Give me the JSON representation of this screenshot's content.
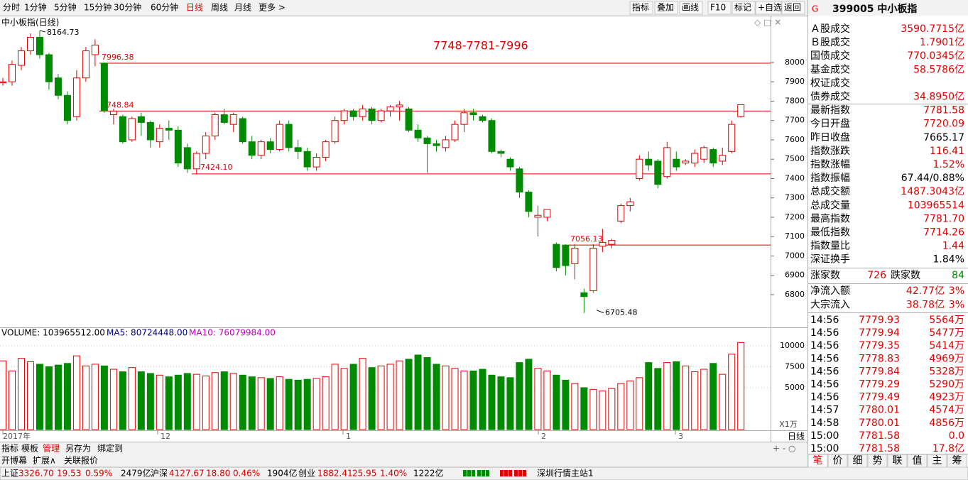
{
  "toolbar": {
    "periods": [
      "分时",
      "1分钟",
      "5分钟",
      "15分钟",
      "30分钟",
      "60分钟",
      "日线",
      "周线",
      "月线",
      "更多 >"
    ],
    "tools": [
      "指标",
      "叠加",
      "画线",
      "F10",
      "标记",
      "+自选",
      "返回"
    ]
  },
  "price_chart": {
    "title": "中小板指(日线)",
    "annotation": "7748-7781-7996",
    "ylim": [
      6653,
      8176
    ],
    "yticks": [
      6800,
      6900,
      7000,
      7100,
      7200,
      7300,
      7400,
      7500,
      7600,
      7700,
      7800,
      7900,
      8000
    ],
    "levels": [
      7996.38,
      7748.84,
      {
        "value": 7424.1,
        "label": "7424.10"
      },
      7056.13
    ],
    "high": 8164.73,
    "low": 6705.48,
    "period_label": "日线",
    "x_labels": [
      "2017年",
      "12",
      "1",
      "2",
      "3"
    ],
    "candles": [
      [
        7895,
        7920,
        7880,
        7900
      ],
      [
        7900,
        8010,
        7880,
        7990
      ],
      [
        7985,
        8080,
        7960,
        8060
      ],
      [
        8060,
        8150,
        8040,
        8130
      ],
      [
        8130,
        8164.73,
        8020,
        8040
      ],
      [
        8040,
        8050,
        7860,
        7900
      ],
      [
        7920,
        7940,
        7810,
        7830
      ],
      [
        7830,
        7850,
        7680,
        7700
      ],
      [
        7720,
        7960,
        7700,
        7920
      ],
      [
        7920,
        8080,
        7900,
        8060
      ],
      [
        8040,
        8120,
        7980,
        8090
      ],
      [
        7996.38,
        8000,
        7740,
        7750
      ],
      [
        7730,
        7760,
        7680,
        7748.84
      ],
      [
        7720,
        7730,
        7580,
        7590
      ],
      [
        7600,
        7720,
        7590,
        7710
      ],
      [
        7720,
        7740,
        7620,
        7690
      ],
      [
        7690,
        7700,
        7560,
        7600
      ],
      [
        7590,
        7680,
        7560,
        7660
      ],
      [
        7660,
        7700,
        7600,
        7650
      ],
      [
        7650,
        7670,
        7460,
        7480
      ],
      [
        7560,
        7580,
        7430,
        7450
      ],
      [
        7450,
        7540,
        7424.1,
        7530
      ],
      [
        7530,
        7640,
        7500,
        7620
      ],
      [
        7620,
        7740,
        7600,
        7730
      ],
      [
        7730,
        7760,
        7680,
        7690
      ],
      [
        7680,
        7740,
        7640,
        7730
      ],
      [
        7710,
        7720,
        7580,
        7590
      ],
      [
        7590,
        7620,
        7500,
        7520
      ],
      [
        7520,
        7600,
        7500,
        7590
      ],
      [
        7590,
        7610,
        7530,
        7550
      ],
      [
        7550,
        7700,
        7540,
        7680
      ],
      [
        7680,
        7700,
        7540,
        7560
      ],
      [
        7560,
        7600,
        7500,
        7540
      ],
      [
        7540,
        7560,
        7440,
        7460
      ],
      [
        7460,
        7530,
        7440,
        7510
      ],
      [
        7510,
        7600,
        7490,
        7590
      ],
      [
        7590,
        7720,
        7580,
        7700
      ],
      [
        7700,
        7760,
        7680,
        7750
      ],
      [
        7750,
        7760,
        7700,
        7720
      ],
      [
        7720,
        7780,
        7700,
        7760
      ],
      [
        7760,
        7770,
        7680,
        7700
      ],
      [
        7700,
        7760,
        7690,
        7750
      ],
      [
        7750,
        7780,
        7720,
        7770
      ],
      [
        7770,
        7800,
        7700,
        7780
      ],
      [
        7760,
        7770,
        7640,
        7650
      ],
      [
        7650,
        7680,
        7590,
        7610
      ],
      [
        7610,
        7620,
        7430,
        7580
      ],
      [
        7580,
        7600,
        7540,
        7570
      ],
      [
        7560,
        7620,
        7540,
        7600
      ],
      [
        7600,
        7700,
        7590,
        7680
      ],
      [
        7680,
        7760,
        7640,
        7740
      ],
      [
        7740,
        7760,
        7700,
        7730
      ],
      [
        7720,
        7730,
        7690,
        7700
      ],
      [
        7700,
        7710,
        7530,
        7540
      ],
      [
        7540,
        7550,
        7510,
        7530
      ],
      [
        7500,
        7510,
        7440,
        7460
      ],
      [
        7450,
        7460,
        7300,
        7330
      ],
      [
        7330,
        7340,
        7200,
        7230
      ],
      [
        7200,
        7260,
        7100,
        7210
      ],
      [
        7200,
        7240,
        7180,
        7240
      ],
      [
        7060,
        7070,
        6920,
        6940
      ],
      [
        7056.13,
        7060,
        6900,
        6950
      ],
      [
        6960,
        7060,
        6880,
        7040
      ],
      [
        6810,
        6830,
        6705.48,
        6790
      ],
      [
        6820,
        7060,
        6810,
        7040
      ],
      [
        7050,
        7140,
        7020,
        7070
      ],
      [
        7060,
        7090,
        7040,
        7080
      ],
      [
        7180,
        7270,
        7170,
        7260
      ],
      [
        7260,
        7300,
        7230,
        7280
      ],
      [
        7400,
        7520,
        7390,
        7500
      ],
      [
        7500,
        7540,
        7440,
        7470
      ],
      [
        7490,
        7500,
        7350,
        7370
      ],
      [
        7410,
        7590,
        7400,
        7560
      ],
      [
        7500,
        7540,
        7440,
        7460
      ],
      [
        7480,
        7500,
        7470,
        7490
      ],
      [
        7480,
        7550,
        7460,
        7530
      ],
      [
        7500,
        7570,
        7480,
        7560
      ],
      [
        7550,
        7560,
        7460,
        7480
      ],
      [
        7490,
        7560,
        7470,
        7520
      ],
      [
        7540,
        7700,
        7530,
        7680
      ],
      [
        7720.09,
        7781.7,
        7714.26,
        7781.58
      ]
    ]
  },
  "volume_chart": {
    "volume_label": "VOLUME: 103965512.00",
    "ma5_label": "MA5: 80724448.00",
    "ma10_label": "MA10: 76079984.00",
    "unit_label": "X1万",
    "ylim": [
      0,
      11864
    ],
    "yticks": [
      5000,
      7500,
      10000
    ],
    "values": [
      8200,
      7000,
      8500,
      8100,
      7800,
      7500,
      7700,
      7900,
      8800,
      7600,
      7800,
      7600,
      7200,
      6900,
      7400,
      6900,
      6700,
      6500,
      6300,
      6500,
      6700,
      6600,
      6400,
      6800,
      6900,
      6700,
      6500,
      6300,
      6200,
      6100,
      6300,
      6000,
      5900,
      6000,
      6100,
      6300,
      7800,
      7300,
      7800,
      8500,
      7400,
      7600,
      7800,
      8200,
      8400,
      8900,
      8600,
      7800,
      7600,
      7300,
      7000,
      7000,
      7200,
      6500,
      6300,
      6200,
      8000,
      8400,
      7300,
      7000,
      6500,
      5900,
      5500,
      5000,
      4800,
      4600,
      4900,
      5500,
      5800,
      6200,
      8000,
      7300,
      8000,
      8100,
      7600,
      6900,
      7200,
      7900,
      6600,
      9000,
      10396.5512
    ]
  },
  "bottom_tabs": {
    "row1": [
      "指标",
      "模板",
      "管理",
      "另存为",
      "绑定到"
    ],
    "row2": [
      "开博幕",
      "扩展∧",
      "关联报价"
    ]
  },
  "side_panel": {
    "logo": "G",
    "title": "399005  中小板指",
    "stats": [
      {
        "label": "Ａ股成交",
        "value": "3590.7715亿",
        "color": "#e00000"
      },
      {
        "label": "Ｂ股成交",
        "value": "1.7901亿",
        "color": "#e00000"
      },
      {
        "label": "国债成交",
        "value": "770.0345亿",
        "color": "#e00000"
      },
      {
        "label": "基金成交",
        "value": "58.5786亿",
        "color": "#e00000"
      },
      {
        "label": "权证成交"
      },
      {
        "label": "债券成交",
        "value": "34.8950亿",
        "color": "#e00000"
      },
      {
        "label": "最新指数",
        "value": "7781.58",
        "color": "#e00000"
      },
      {
        "label": "今日开盘",
        "value": "7720.09",
        "color": "#e00000"
      },
      {
        "label": "昨日收盘",
        "value": "7665.17",
        "color": "#000000"
      },
      {
        "label": "指数涨跌",
        "value": "116.41",
        "color": "#e00000"
      },
      {
        "label": "指数涨幅",
        "value": "1.52%",
        "color": "#e00000"
      },
      {
        "label": "指数振幅",
        "value": "67.44/0.88%",
        "color": "#000000"
      },
      {
        "label": "总成交额",
        "value": "1487.3043亿",
        "color": "#e00000"
      },
      {
        "label": "总成交量",
        "value": "103965514",
        "color": "#e00000"
      },
      {
        "label": "最高指数",
        "value": "7781.70",
        "color": "#e00000"
      },
      {
        "label": "最低指数",
        "value": "7714.26",
        "color": "#e00000"
      },
      {
        "label": "指数量比",
        "value": "1.44",
        "color": "#e00000"
      },
      {
        "label": "深证换手",
        "value": "1.84%",
        "color": "#000000"
      }
    ],
    "breadth": {
      "up_label": "涨家数",
      "up": "726",
      "down_label": "跌家数",
      "down": "84"
    },
    "flows": [
      {
        "label": "净流入额",
        "value": "42.77亿",
        "pct": "3%"
      },
      {
        "label": "大宗流入",
        "value": "38.78亿",
        "pct": "3%"
      }
    ],
    "ticks": [
      [
        "14:56",
        "7779.93",
        "5564万"
      ],
      [
        "14:56",
        "7779.94",
        "5477万"
      ],
      [
        "14:56",
        "7779.35",
        "5414万"
      ],
      [
        "14:56",
        "7778.83",
        "4969万"
      ],
      [
        "14:56",
        "7779.84",
        "5328万"
      ],
      [
        "14:56",
        "7779.29",
        "5290万"
      ],
      [
        "14:56",
        "7779.49",
        "4923万"
      ],
      [
        "14:57",
        "7780.01",
        "4574万"
      ],
      [
        "14:58",
        "7780.01",
        "4856万"
      ],
      [
        "15:00",
        "7781.58",
        "0.0"
      ],
      [
        "15:00",
        "7781.58",
        "17.8亿"
      ]
    ],
    "tabs": [
      "笔",
      "价",
      "细",
      "势",
      "联",
      "值",
      "主",
      "筹"
    ]
  },
  "status_bar": {
    "items": [
      "上证",
      "3326.70",
      "19.53",
      "0.59%",
      "2479亿",
      "沪深",
      "4127.67",
      "18.80",
      "0.46%",
      "1904亿",
      "创业",
      "1882.41",
      "25.95",
      "1.40%",
      "1222亿"
    ],
    "server": "深圳行情主站1"
  }
}
